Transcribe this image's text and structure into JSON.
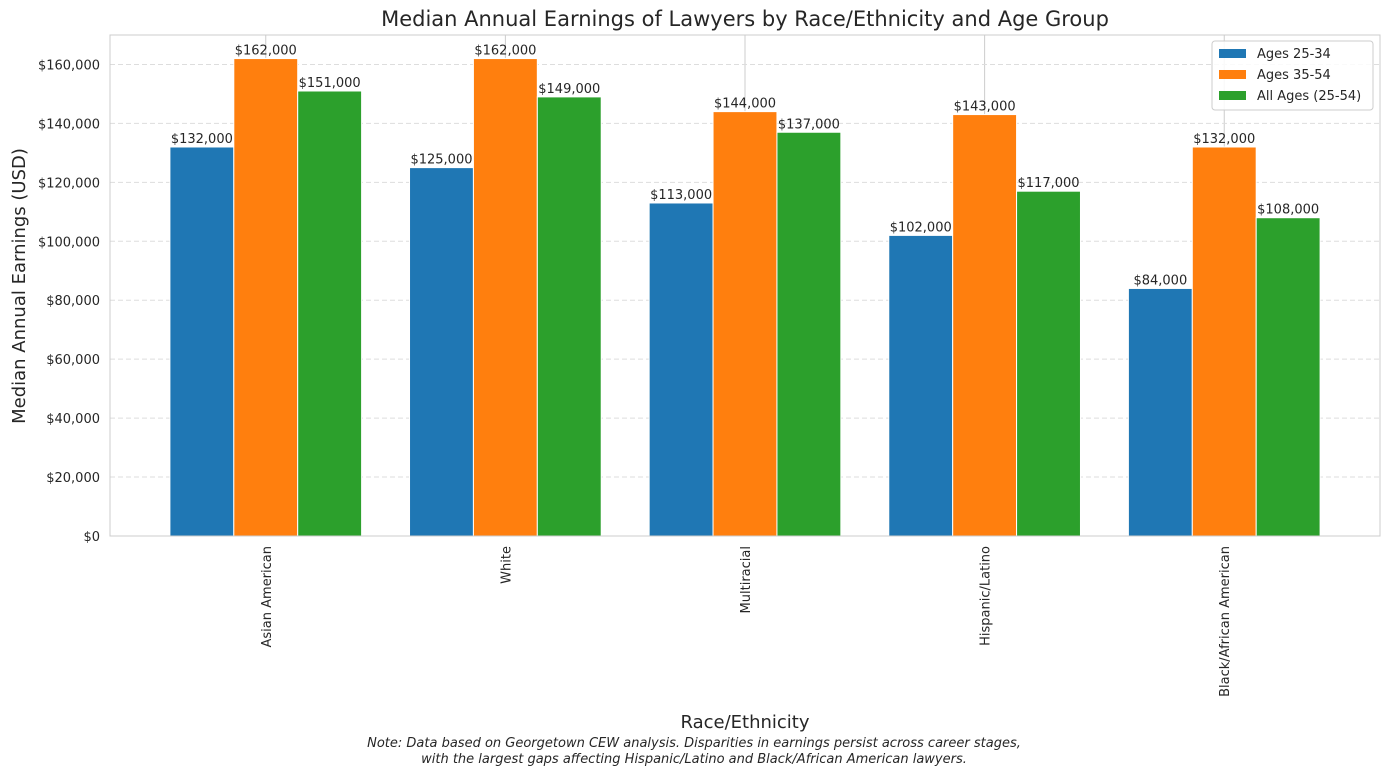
{
  "chart_data": {
    "type": "bar",
    "title": "Median Annual Earnings of Lawyers by Race/Ethnicity and Age Group",
    "xlabel": "Race/Ethnicity",
    "ylabel": "Median Annual Earnings (USD)",
    "categories": [
      "Asian American",
      "White",
      "Multiracial",
      "Hispanic/Latino",
      "Black/African American"
    ],
    "series": [
      {
        "name": "Ages 25-34",
        "color": "#1f77b4",
        "values": [
          132000,
          125000,
          113000,
          102000,
          84000
        ]
      },
      {
        "name": "Ages 35-54",
        "color": "#ff7f0e",
        "values": [
          162000,
          162000,
          144000,
          143000,
          132000
        ]
      },
      {
        "name": "All Ages (25-54)",
        "color": "#2ca02c",
        "values": [
          151000,
          149000,
          137000,
          117000,
          108000
        ]
      }
    ],
    "ylim": [
      0,
      170000
    ],
    "yticks": [
      0,
      20000,
      40000,
      60000,
      80000,
      100000,
      120000,
      140000,
      160000
    ],
    "ytick_labels": [
      "$0",
      "$20,000",
      "$40,000",
      "$60,000",
      "$80,000",
      "$100,000",
      "$120,000",
      "$140,000",
      "$160,000"
    ],
    "data_labels": [
      [
        "$132,000",
        "$125,000",
        "$113,000",
        "$102,000",
        "$84,000"
      ],
      [
        "$162,000",
        "$162,000",
        "$144,000",
        "$143,000",
        "$132,000"
      ],
      [
        "$151,000",
        "$149,000",
        "$137,000",
        "$117,000",
        "$108,000"
      ]
    ],
    "grid": {
      "y": "dashed",
      "x": "solid"
    },
    "legend_placement": "top-right",
    "xtick_rotation": 90,
    "note_lines": [
      "Note: Data based on Georgetown CEW analysis. Disparities in earnings persist across career stages,",
      "with the largest gaps affecting Hispanic/Latino and Black/African American lawyers."
    ]
  }
}
